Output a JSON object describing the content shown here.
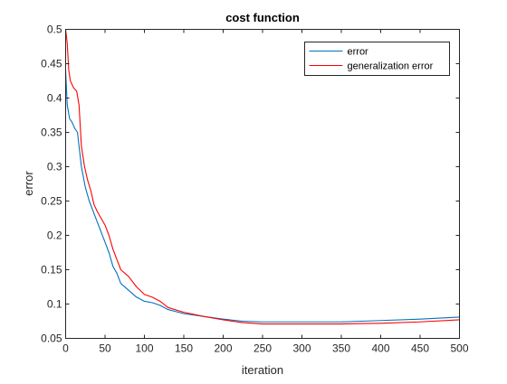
{
  "chart_data": {
    "type": "line",
    "title": "cost function",
    "xlabel": "iteration",
    "ylabel": "error",
    "xlim": [
      0,
      500
    ],
    "ylim": [
      0.05,
      0.5
    ],
    "xticks": [
      0,
      50,
      100,
      150,
      200,
      250,
      300,
      350,
      400,
      450,
      500
    ],
    "yticks": [
      0.05,
      0.1,
      0.15,
      0.2,
      0.25,
      0.3,
      0.35,
      0.4,
      0.45,
      0.5
    ],
    "xtick_labels": [
      "0",
      "50",
      "100",
      "150",
      "200",
      "250",
      "300",
      "350",
      "400",
      "450",
      "500"
    ],
    "ytick_labels": [
      "0.05",
      "0.1",
      "0.15",
      "0.2",
      "0.25",
      "0.3",
      "0.35",
      "0.4",
      "0.45",
      "0.5"
    ],
    "grid": false,
    "legend_position": "top-right",
    "series": [
      {
        "name": "error",
        "color": "#0072BD",
        "points": [
          [
            0,
            0.44
          ],
          [
            2,
            0.39
          ],
          [
            5,
            0.37
          ],
          [
            8,
            0.365
          ],
          [
            12,
            0.355
          ],
          [
            15,
            0.35
          ],
          [
            18,
            0.32
          ],
          [
            20,
            0.3
          ],
          [
            25,
            0.27
          ],
          [
            30,
            0.25
          ],
          [
            35,
            0.235
          ],
          [
            40,
            0.22
          ],
          [
            45,
            0.205
          ],
          [
            50,
            0.19
          ],
          [
            55,
            0.175
          ],
          [
            60,
            0.155
          ],
          [
            65,
            0.145
          ],
          [
            70,
            0.13
          ],
          [
            80,
            0.12
          ],
          [
            90,
            0.11
          ],
          [
            100,
            0.104
          ],
          [
            110,
            0.102
          ],
          [
            120,
            0.098
          ],
          [
            130,
            0.092
          ],
          [
            150,
            0.086
          ],
          [
            175,
            0.082
          ],
          [
            200,
            0.078
          ],
          [
            225,
            0.075
          ],
          [
            250,
            0.074
          ],
          [
            275,
            0.074
          ],
          [
            300,
            0.074
          ],
          [
            350,
            0.074
          ],
          [
            400,
            0.076
          ],
          [
            450,
            0.078
          ],
          [
            500,
            0.081
          ]
        ]
      },
      {
        "name": "generalization error",
        "color": "#FF0000",
        "points": [
          [
            0,
            0.5
          ],
          [
            2,
            0.48
          ],
          [
            4,
            0.44
          ],
          [
            6,
            0.425
          ],
          [
            10,
            0.415
          ],
          [
            14,
            0.41
          ],
          [
            17,
            0.39
          ],
          [
            20,
            0.33
          ],
          [
            24,
            0.3
          ],
          [
            28,
            0.28
          ],
          [
            32,
            0.265
          ],
          [
            36,
            0.245
          ],
          [
            40,
            0.235
          ],
          [
            45,
            0.225
          ],
          [
            50,
            0.215
          ],
          [
            55,
            0.2
          ],
          [
            60,
            0.18
          ],
          [
            65,
            0.165
          ],
          [
            70,
            0.15
          ],
          [
            80,
            0.14
          ],
          [
            90,
            0.125
          ],
          [
            100,
            0.114
          ],
          [
            110,
            0.11
          ],
          [
            120,
            0.104
          ],
          [
            130,
            0.095
          ],
          [
            150,
            0.088
          ],
          [
            175,
            0.082
          ],
          [
            200,
            0.077
          ],
          [
            225,
            0.073
          ],
          [
            250,
            0.071
          ],
          [
            275,
            0.071
          ],
          [
            300,
            0.071
          ],
          [
            350,
            0.071
          ],
          [
            400,
            0.072
          ],
          [
            450,
            0.074
          ],
          [
            500,
            0.077
          ]
        ]
      }
    ]
  }
}
